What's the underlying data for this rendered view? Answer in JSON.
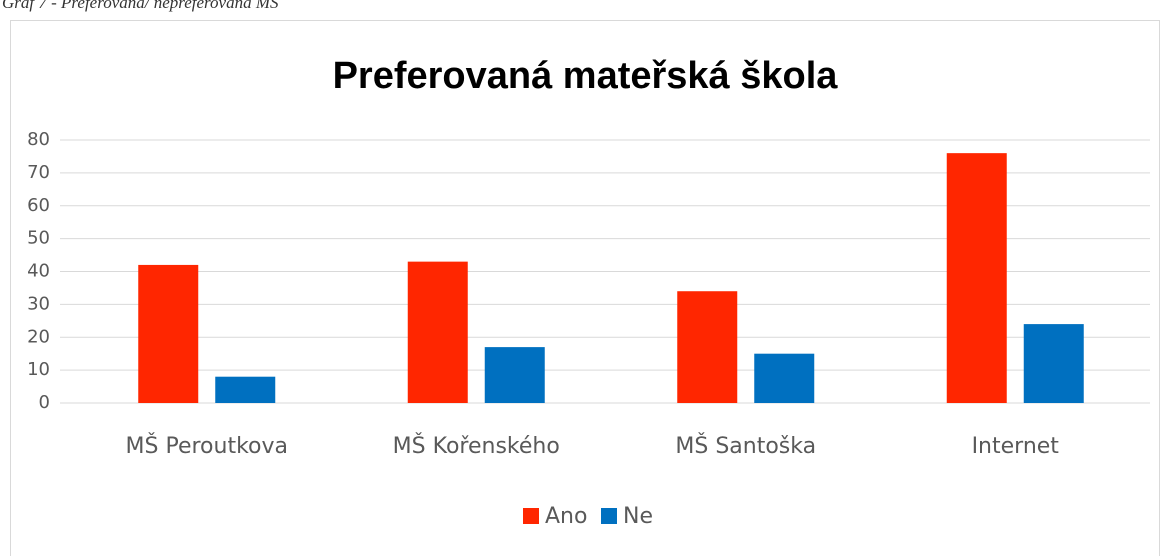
{
  "caption": "Graf 7 - Preferovaná/ nepreferovaná MŠ",
  "chart_data": {
    "type": "bar",
    "title": "Preferovaná mateřská škola",
    "categories": [
      "MŠ Peroutkova",
      "MŠ Kořenského",
      "MŠ Santoška",
      "Internet"
    ],
    "series": [
      {
        "name": "Ano",
        "color": "#ff2600",
        "values": [
          42,
          43,
          34,
          76
        ]
      },
      {
        "name": "Ne",
        "color": "#0070c0",
        "values": [
          8,
          17,
          15,
          24
        ]
      }
    ],
    "ylim": [
      0,
      80
    ],
    "yticks": [
      0,
      10,
      20,
      30,
      40,
      50,
      60,
      70,
      80
    ],
    "grid": true,
    "legend": "bottom"
  }
}
